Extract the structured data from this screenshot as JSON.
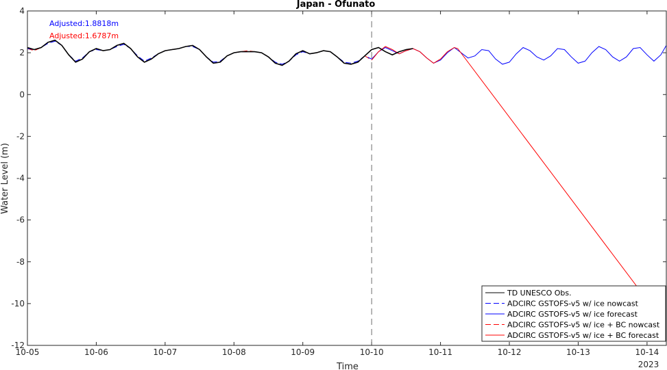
{
  "chart_data": {
    "type": "line",
    "title": "Japan - Ofunato",
    "xlabel": "Time",
    "ylabel": "Water Level (m)",
    "xlim": [
      0,
      9.28
    ],
    "ylim": [
      -12,
      4
    ],
    "x_ticks": [
      {
        "x": 0,
        "label": "10-05"
      },
      {
        "x": 1,
        "label": "10-06"
      },
      {
        "x": 2,
        "label": "10-07"
      },
      {
        "x": 3,
        "label": "10-08"
      },
      {
        "x": 4,
        "label": "10-09"
      },
      {
        "x": 5,
        "label": "10-10"
      },
      {
        "x": 6,
        "label": "10-11"
      },
      {
        "x": 7,
        "label": "10-12"
      },
      {
        "x": 8,
        "label": "10-13"
      },
      {
        "x": 9,
        "label": "10-14"
      }
    ],
    "year_label": "2023",
    "y_ticks": [
      4,
      2,
      0,
      -2,
      -4,
      -6,
      -8,
      -10,
      -12
    ],
    "nowcast_divider_x": 5,
    "annotations": [
      {
        "text": "Adjusted:1.8818m",
        "color": "#0000ff"
      },
      {
        "text": "Adjusted:1.6787m",
        "color": "#ff0000"
      }
    ],
    "legend_placement": "bottom-right",
    "series": [
      {
        "name": "TD UNESCO Obs.",
        "color": "#000000",
        "dash": "solid",
        "x": [
          0,
          0.1,
          0.2,
          0.3,
          0.4,
          0.5,
          0.6,
          0.7,
          0.8,
          0.9,
          1.0,
          1.1,
          1.2,
          1.3,
          1.4,
          1.5,
          1.6,
          1.7,
          1.8,
          1.9,
          2.0,
          2.1,
          2.2,
          2.3,
          2.4,
          2.5,
          2.6,
          2.7,
          2.8,
          2.9,
          3.0,
          3.1,
          3.2,
          3.3,
          3.4,
          3.5,
          3.6,
          3.7,
          3.8,
          3.9,
          4.0,
          4.1,
          4.2,
          4.3,
          4.4,
          4.5,
          4.6,
          4.7,
          4.8,
          4.9,
          5.0,
          5.1,
          5.2,
          5.3,
          5.4,
          5.5,
          5.6
        ],
        "y": [
          2.25,
          2.15,
          2.25,
          2.5,
          2.6,
          2.35,
          1.9,
          1.55,
          1.7,
          2.05,
          2.2,
          2.1,
          2.15,
          2.35,
          2.45,
          2.2,
          1.8,
          1.55,
          1.7,
          1.95,
          2.1,
          2.15,
          2.2,
          2.3,
          2.35,
          2.15,
          1.8,
          1.5,
          1.55,
          1.85,
          2.0,
          2.05,
          2.05,
          2.05,
          2.0,
          1.8,
          1.5,
          1.4,
          1.6,
          1.95,
          2.1,
          1.95,
          2.0,
          2.1,
          2.05,
          1.8,
          1.5,
          1.45,
          1.55,
          1.85,
          2.15,
          2.25,
          2.05,
          1.9,
          2.05,
          2.15,
          2.2
        ]
      },
      {
        "name": "ADCIRC GSTOFS-v5 w/ ice nowcast",
        "color": "#0000ff",
        "dash": "dashed",
        "x": [
          0,
          0.1,
          0.2,
          0.3,
          0.4,
          0.5,
          0.6,
          0.7,
          0.8,
          0.9,
          1.0,
          1.1,
          1.2,
          1.3,
          1.4,
          1.5,
          1.6,
          1.7,
          1.8,
          1.9,
          2.0,
          2.1,
          2.2,
          2.3,
          2.4,
          2.5,
          2.6,
          2.7,
          2.8,
          2.9,
          3.0,
          3.1,
          3.2,
          3.3,
          3.4,
          3.5,
          3.6,
          3.7,
          3.8,
          3.9,
          4.0,
          4.1,
          4.2,
          4.3,
          4.4,
          4.5,
          4.6,
          4.7,
          4.8,
          4.9,
          5.0
        ],
        "y": [
          2.2,
          2.15,
          2.25,
          2.45,
          2.55,
          2.35,
          1.9,
          1.6,
          1.75,
          2.05,
          2.15,
          2.1,
          2.15,
          2.3,
          2.4,
          2.2,
          1.85,
          1.6,
          1.75,
          1.95,
          2.1,
          2.15,
          2.2,
          2.3,
          2.3,
          2.15,
          1.8,
          1.55,
          1.6,
          1.85,
          2.0,
          2.05,
          2.05,
          2.05,
          2.0,
          1.8,
          1.55,
          1.45,
          1.6,
          1.9,
          2.05,
          1.95,
          2.0,
          2.1,
          2.05,
          1.8,
          1.55,
          1.5,
          1.6,
          1.85,
          1.7
        ]
      },
      {
        "name": "ADCIRC GSTOFS-v5 w/ ice forecast",
        "color": "#0000ff",
        "dash": "solid",
        "x": [
          5.0,
          5.1,
          5.2,
          5.3,
          5.4,
          5.5,
          5.6,
          5.7,
          5.8,
          5.9,
          6.0,
          6.1,
          6.2,
          6.3,
          6.4,
          6.5,
          6.6,
          6.7,
          6.8,
          6.9,
          7.0,
          7.1,
          7.2,
          7.3,
          7.4,
          7.5,
          7.6,
          7.7,
          7.8,
          7.9,
          8.0,
          8.1,
          8.2,
          8.3,
          8.4,
          8.5,
          8.6,
          8.7,
          8.8,
          8.9,
          9.0,
          9.1,
          9.2,
          9.28
        ],
        "y": [
          1.7,
          2.05,
          2.25,
          2.1,
          1.95,
          2.1,
          2.2,
          2.05,
          1.75,
          1.5,
          1.65,
          2.0,
          2.25,
          2.0,
          1.75,
          1.85,
          2.15,
          2.1,
          1.7,
          1.45,
          1.55,
          1.95,
          2.25,
          2.1,
          1.8,
          1.65,
          1.85,
          2.2,
          2.15,
          1.8,
          1.5,
          1.6,
          2.0,
          2.3,
          2.15,
          1.8,
          1.6,
          1.8,
          2.2,
          2.25,
          1.9,
          1.6,
          1.9,
          2.35
        ]
      },
      {
        "name": "ADCIRC GSTOFS-v5 w/ ice + BC nowcast",
        "color": "#ff0000",
        "dash": "dashed",
        "x": [
          0,
          0.1,
          0.2,
          0.3,
          0.4,
          0.5,
          0.6,
          0.7,
          0.8,
          0.9,
          1.0,
          1.1,
          1.2,
          1.3,
          1.4,
          1.5,
          1.6,
          1.7,
          1.8,
          1.9,
          2.0,
          2.1,
          2.2,
          2.3,
          2.4,
          2.5,
          2.6,
          2.7,
          2.8,
          2.9,
          3.0,
          3.1,
          3.2,
          3.3,
          3.4,
          3.5,
          3.6,
          3.7,
          3.8,
          3.9,
          4.0,
          4.1,
          4.2,
          4.3,
          4.4,
          4.5,
          4.6,
          4.7,
          4.8,
          4.9,
          5.0
        ],
        "y": [
          2.2,
          2.1,
          2.25,
          2.5,
          2.6,
          2.35,
          1.9,
          1.55,
          1.7,
          2.05,
          2.2,
          2.1,
          2.15,
          2.35,
          2.45,
          2.2,
          1.8,
          1.55,
          1.7,
          1.95,
          2.1,
          2.15,
          2.2,
          2.3,
          2.35,
          2.15,
          1.8,
          1.5,
          1.55,
          1.85,
          2.0,
          2.05,
          2.1,
          2.05,
          2.0,
          1.8,
          1.5,
          1.4,
          1.6,
          1.95,
          2.1,
          1.95,
          2.0,
          2.1,
          2.05,
          1.8,
          1.5,
          1.45,
          1.55,
          1.85,
          1.65
        ]
      },
      {
        "name": "ADCIRC GSTOFS-v5 w/ ice + BC forecast",
        "color": "#ff0000",
        "dash": "solid",
        "x": [
          5.0,
          5.1,
          5.2,
          5.3,
          5.4,
          5.5,
          5.6,
          5.7,
          5.8,
          5.9,
          6.0,
          6.1,
          6.2,
          6.25,
          9.28
        ],
        "y": [
          1.65,
          2.05,
          2.3,
          2.15,
          1.95,
          2.1,
          2.2,
          2.05,
          1.75,
          1.5,
          1.7,
          2.05,
          2.25,
          2.2,
          -11.05
        ]
      }
    ]
  }
}
